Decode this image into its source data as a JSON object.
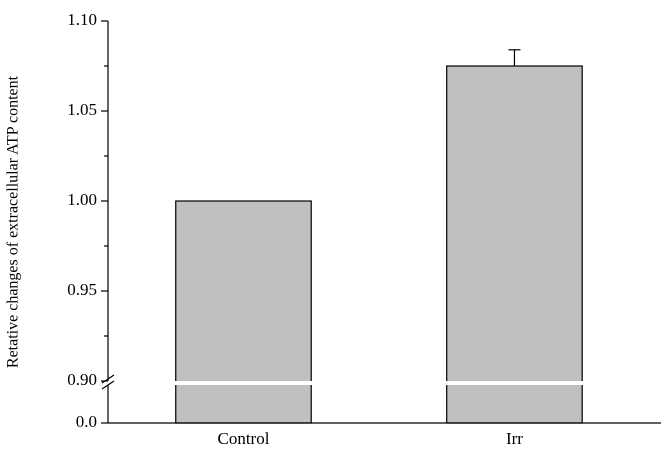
{
  "chart_data": {
    "type": "bar",
    "y_label": "Retative changes of extracellular ATP content",
    "categories": [
      "Control",
      "Irr"
    ],
    "values": [
      1.0,
      1.075
    ],
    "errors": [
      null,
      0.009
    ],
    "color": "#c0c0c0",
    "ylim": [
      0,
      1.1
    ],
    "y_break": 0.9,
    "yticks": [
      {
        "value": 0,
        "label": "0.0"
      },
      {
        "value": 0.9,
        "label": "0.90"
      },
      {
        "value": 0.95,
        "label": "0.95"
      },
      {
        "value": 1.0,
        "label": "1.00"
      },
      {
        "value": 1.05,
        "label": "1.05"
      },
      {
        "value": 1.1,
        "label": "1.10"
      }
    ],
    "minor_yticks": [
      0.925,
      0.975,
      1.025,
      1.075
    ]
  }
}
